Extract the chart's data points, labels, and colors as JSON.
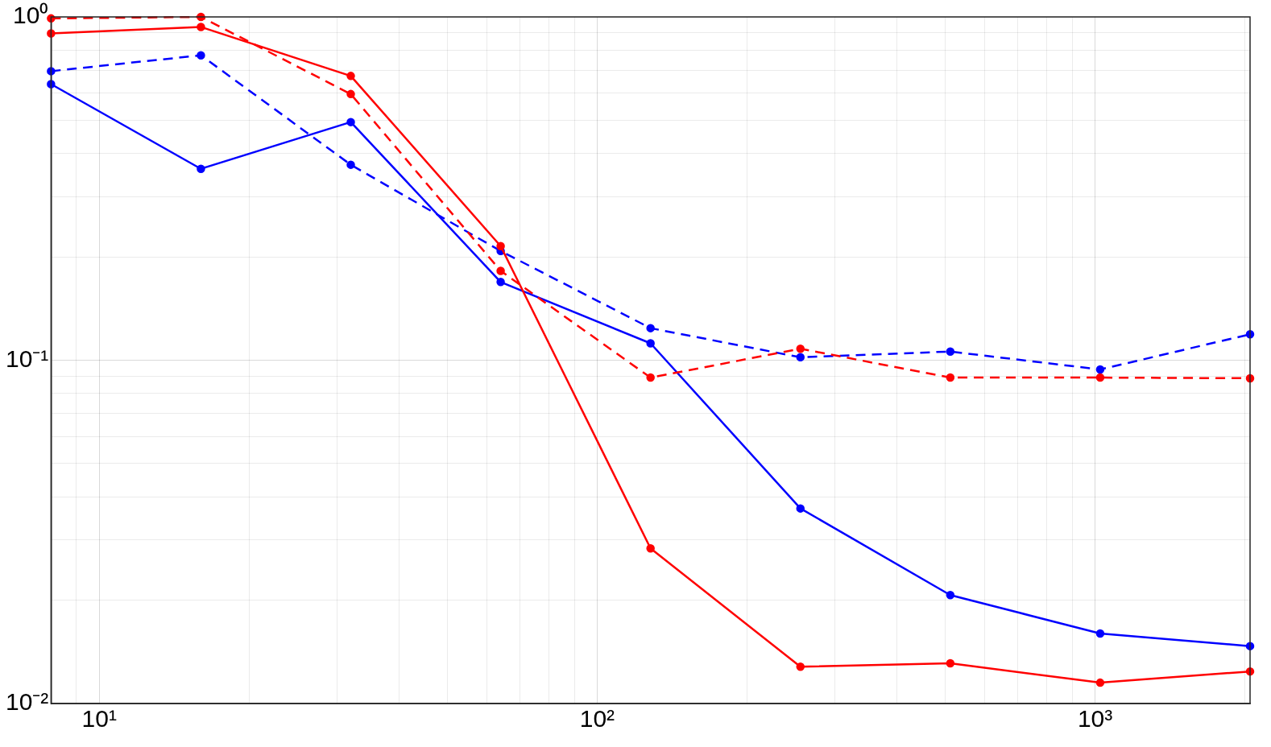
{
  "chart_data": {
    "type": "line",
    "log": "xy",
    "grid": true,
    "marker": "circle",
    "x": [
      8,
      16,
      32,
      64,
      128,
      256,
      512,
      1024,
      2048
    ],
    "xlim": [
      8,
      2048
    ],
    "ylim": [
      0.01,
      1
    ],
    "xticks": [
      {
        "value": 9,
        "label": null
      },
      {
        "value": 10,
        "label": "10¹"
      },
      {
        "value": 20,
        "label": null
      },
      {
        "value": 30,
        "label": null
      },
      {
        "value": 40,
        "label": null
      },
      {
        "value": 50,
        "label": null
      },
      {
        "value": 60,
        "label": null
      },
      {
        "value": 70,
        "label": null
      },
      {
        "value": 80,
        "label": null
      },
      {
        "value": 90,
        "label": null
      },
      {
        "value": 100,
        "label": "10²"
      },
      {
        "value": 200,
        "label": null
      },
      {
        "value": 300,
        "label": null
      },
      {
        "value": 400,
        "label": null
      },
      {
        "value": 500,
        "label": null
      },
      {
        "value": 600,
        "label": null
      },
      {
        "value": 700,
        "label": null
      },
      {
        "value": 800,
        "label": null
      },
      {
        "value": 900,
        "label": null
      },
      {
        "value": 1000,
        "label": "10³"
      },
      {
        "value": 2000,
        "label": null
      }
    ],
    "yticks": [
      {
        "value": 0.01,
        "label": "10⁻²"
      },
      {
        "value": 0.02,
        "label": null
      },
      {
        "value": 0.03,
        "label": null
      },
      {
        "value": 0.04,
        "label": null
      },
      {
        "value": 0.05,
        "label": null
      },
      {
        "value": 0.06,
        "label": null
      },
      {
        "value": 0.07,
        "label": null
      },
      {
        "value": 0.08,
        "label": null
      },
      {
        "value": 0.09,
        "label": null
      },
      {
        "value": 0.1,
        "label": "10⁻¹"
      },
      {
        "value": 0.2,
        "label": null
      },
      {
        "value": 0.3,
        "label": null
      },
      {
        "value": 0.4,
        "label": null
      },
      {
        "value": 0.5,
        "label": null
      },
      {
        "value": 0.6,
        "label": null
      },
      {
        "value": 0.7,
        "label": null
      },
      {
        "value": 0.8,
        "label": null
      },
      {
        "value": 0.9,
        "label": null
      },
      {
        "value": 1,
        "label": "10⁰"
      }
    ],
    "series": [
      {
        "color": "#ff0000",
        "line_style": "solid",
        "values": [
          0.895,
          0.935,
          0.673,
          0.215,
          0.0283,
          0.0128,
          0.0131,
          0.0115,
          0.0124
        ]
      },
      {
        "color": "#ff0000",
        "line_style": "dashed",
        "values": [
          0.99,
          1.0,
          0.596,
          0.182,
          0.089,
          0.108,
          0.089,
          0.089,
          0.0886
        ]
      },
      {
        "color": "#0000ff",
        "line_style": "solid",
        "values": [
          0.637,
          0.361,
          0.494,
          0.169,
          0.112,
          0.037,
          0.0207,
          0.016,
          0.0147
        ]
      },
      {
        "color": "#0000ff",
        "line_style": "dashed",
        "values": [
          0.695,
          0.773,
          0.371,
          0.208,
          0.124,
          0.102,
          0.106,
          0.094,
          0.119
        ]
      }
    ]
  }
}
